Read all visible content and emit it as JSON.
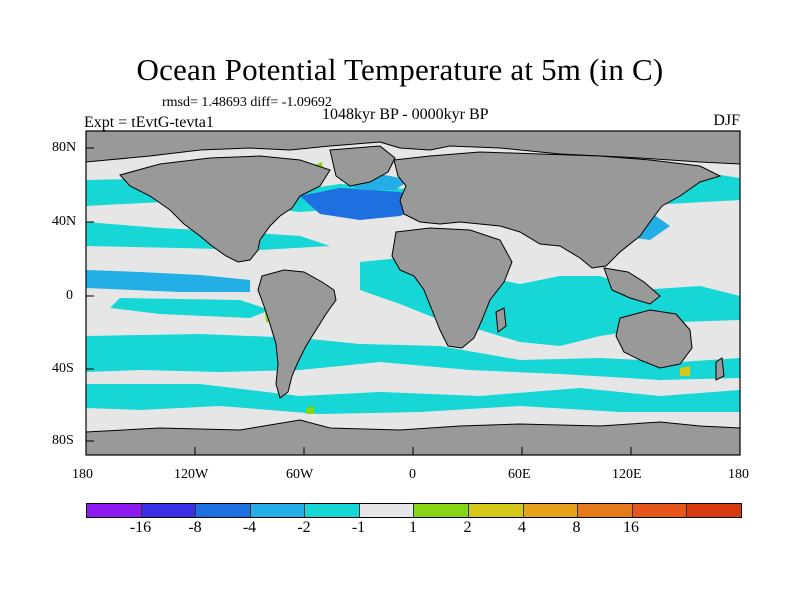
{
  "title": "Ocean Potential Temperature at 5m (in C)",
  "stats": "rmsd= 1.48693 diff= -1.09692",
  "experiment": "Expt = tEvtG-tevta1",
  "period": "1048kyr BP - 0000kyr BP",
  "season": "DJF",
  "map": {
    "lat_ticks": [
      "80N",
      "40N",
      "0",
      "40S",
      "80S"
    ],
    "lon_ticks": [
      "180",
      "120W",
      "60W",
      "0",
      "60E",
      "120E",
      "180"
    ]
  },
  "colorbar": {
    "colors": [
      "#8c1cf0",
      "#3a2ee6",
      "#1e6fe0",
      "#24aee6",
      "#16d6d6",
      "#e6e6e6",
      "#86d616",
      "#d6c81a",
      "#e6a21a",
      "#e67a1a",
      "#e6561a",
      "#d83a10"
    ],
    "labels": [
      "-16",
      "-8",
      "-4",
      "-2",
      "-1",
      "1",
      "2",
      "4",
      "8",
      "16"
    ]
  },
  "palette": {
    "land": "#999999",
    "coast": "#000000",
    "neutral": "#e6e6e6"
  }
}
